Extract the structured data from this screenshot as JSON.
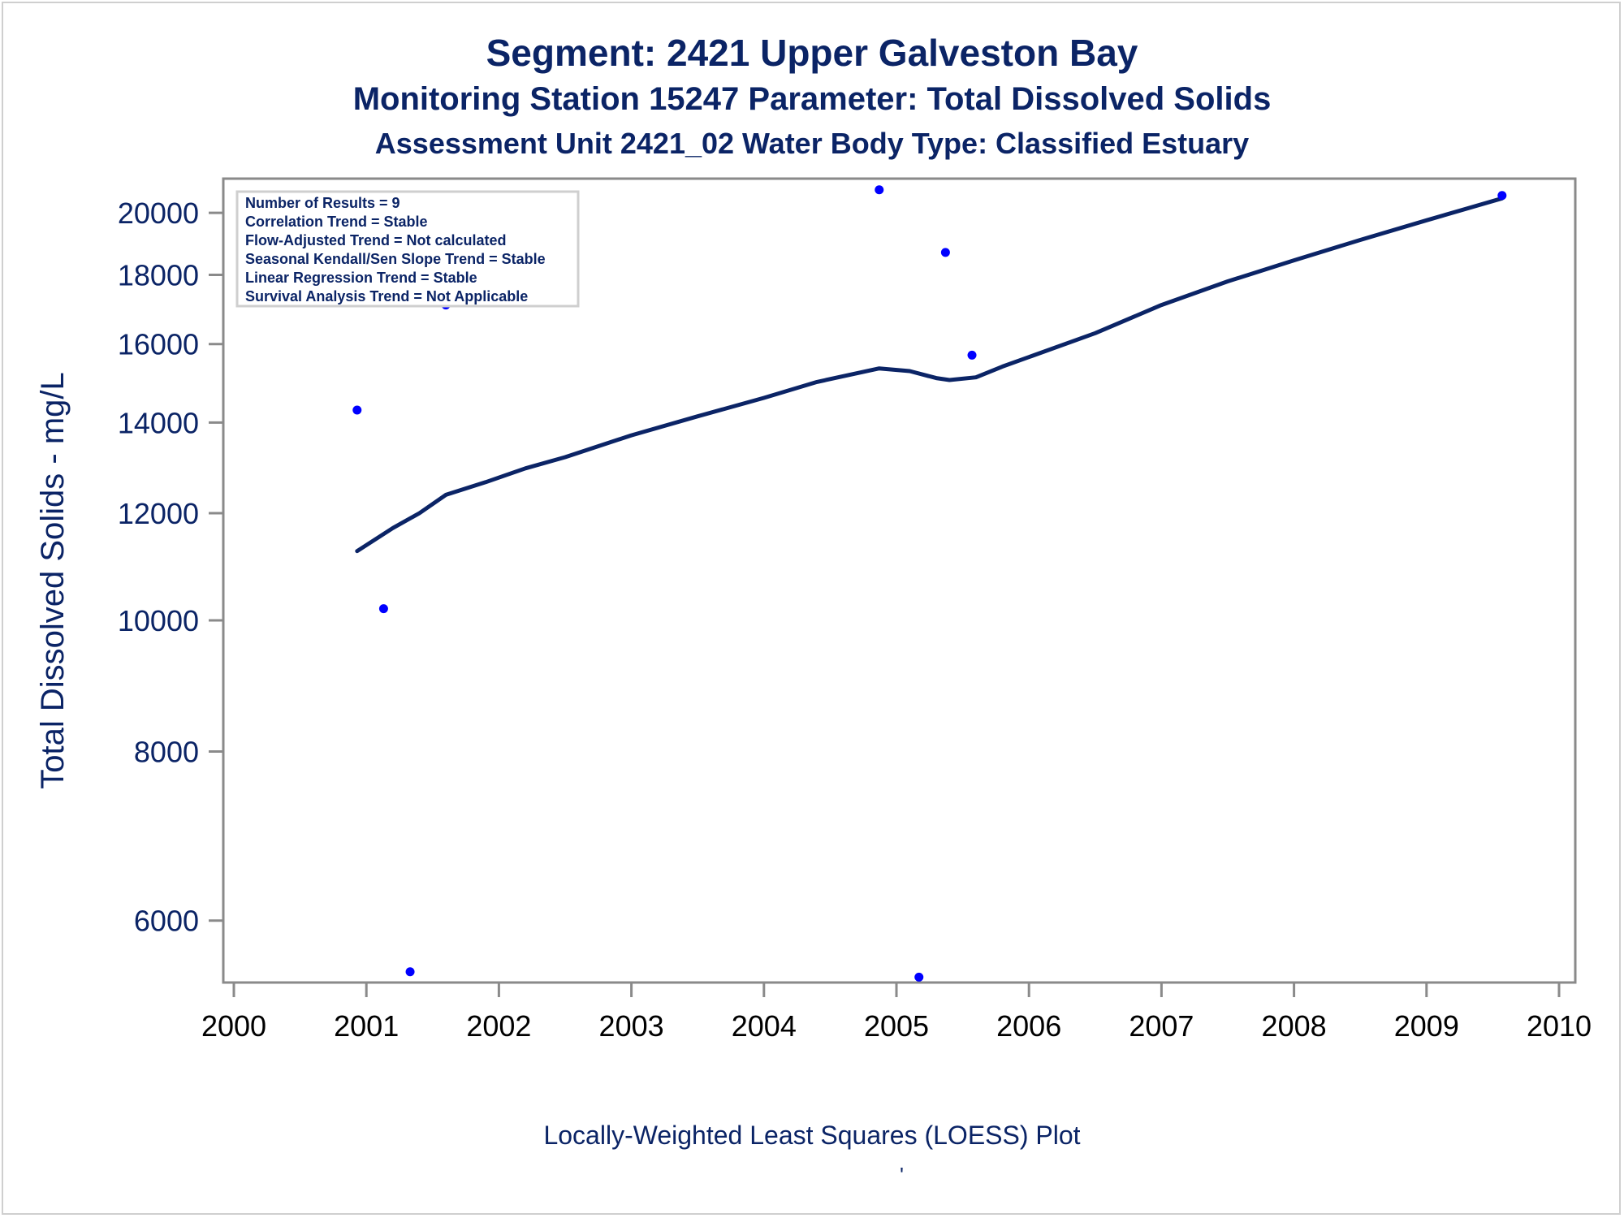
{
  "colors": {
    "title": "#0b2466",
    "axis_text": "#0b2466",
    "line": "#0b2466",
    "points": "#0000ff",
    "frame": "#8a8a8a",
    "tick_label": "#000000"
  },
  "title": "Segment: 2421  Upper Galveston Bay",
  "subtitle1": "Monitoring Station 15247 Parameter: Total Dissolved Solids",
  "subtitle2": "Assessment Unit 2421_02   Water Body Type: Classified Estuary",
  "footnote": "Locally-Weighted Least Squares (LOESS) Plot",
  "footnote_mark": "'",
  "chart_data": {
    "type": "scatter",
    "ylabel": "Total Dissolved Solids - mg/L",
    "yscale": "log",
    "xlim": [
      2000,
      2010
    ],
    "ylim": [
      5400,
      21200
    ],
    "x_ticks": [
      "2000",
      "2001",
      "2002",
      "2003",
      "2004",
      "2005",
      "2006",
      "2007",
      "2008",
      "2009",
      "2010"
    ],
    "y_ticks": [
      "6000",
      "8000",
      "10000",
      "12000",
      "14000",
      "16000",
      "18000",
      "20000"
    ],
    "y_tick_values": [
      6000,
      8000,
      10000,
      12000,
      14000,
      16000,
      18000,
      20000
    ],
    "legend_position": "top-left",
    "stats": [
      "Number of Results = 9",
      "Correlation Trend = Stable",
      "Flow-Adjusted Trend = Not calculated",
      "Seasonal Kendall/Sen Slope Trend = Stable",
      "Linear Regression Trend = Stable",
      "Survival Analysis Trend = Not Applicable"
    ],
    "points": [
      {
        "x": 2000.93,
        "y": 14300
      },
      {
        "x": 2001.13,
        "y": 10200
      },
      {
        "x": 2001.33,
        "y": 5500
      },
      {
        "x": 2001.6,
        "y": 17100
      },
      {
        "x": 2004.87,
        "y": 20800
      },
      {
        "x": 2005.17,
        "y": 5450
      },
      {
        "x": 2005.37,
        "y": 18700
      },
      {
        "x": 2005.57,
        "y": 15700
      },
      {
        "x": 2009.57,
        "y": 20600
      }
    ],
    "loess_line": [
      {
        "x": 2000.93,
        "y": 11250
      },
      {
        "x": 2001.2,
        "y": 11700
      },
      {
        "x": 2001.4,
        "y": 12000
      },
      {
        "x": 2001.6,
        "y": 12380
      },
      {
        "x": 2001.9,
        "y": 12650
      },
      {
        "x": 2002.2,
        "y": 12950
      },
      {
        "x": 2002.5,
        "y": 13200
      },
      {
        "x": 2003.0,
        "y": 13700
      },
      {
        "x": 2003.5,
        "y": 14150
      },
      {
        "x": 2004.0,
        "y": 14600
      },
      {
        "x": 2004.4,
        "y": 15000
      },
      {
        "x": 2004.87,
        "y": 15350
      },
      {
        "x": 2005.1,
        "y": 15280
      },
      {
        "x": 2005.3,
        "y": 15100
      },
      {
        "x": 2005.4,
        "y": 15050
      },
      {
        "x": 2005.6,
        "y": 15120
      },
      {
        "x": 2005.8,
        "y": 15400
      },
      {
        "x": 2006.0,
        "y": 15650
      },
      {
        "x": 2006.5,
        "y": 16300
      },
      {
        "x": 2007.0,
        "y": 17100
      },
      {
        "x": 2007.5,
        "y": 17800
      },
      {
        "x": 2008.0,
        "y": 18450
      },
      {
        "x": 2008.5,
        "y": 19100
      },
      {
        "x": 2009.0,
        "y": 19750
      },
      {
        "x": 2009.57,
        "y": 20500
      }
    ]
  }
}
